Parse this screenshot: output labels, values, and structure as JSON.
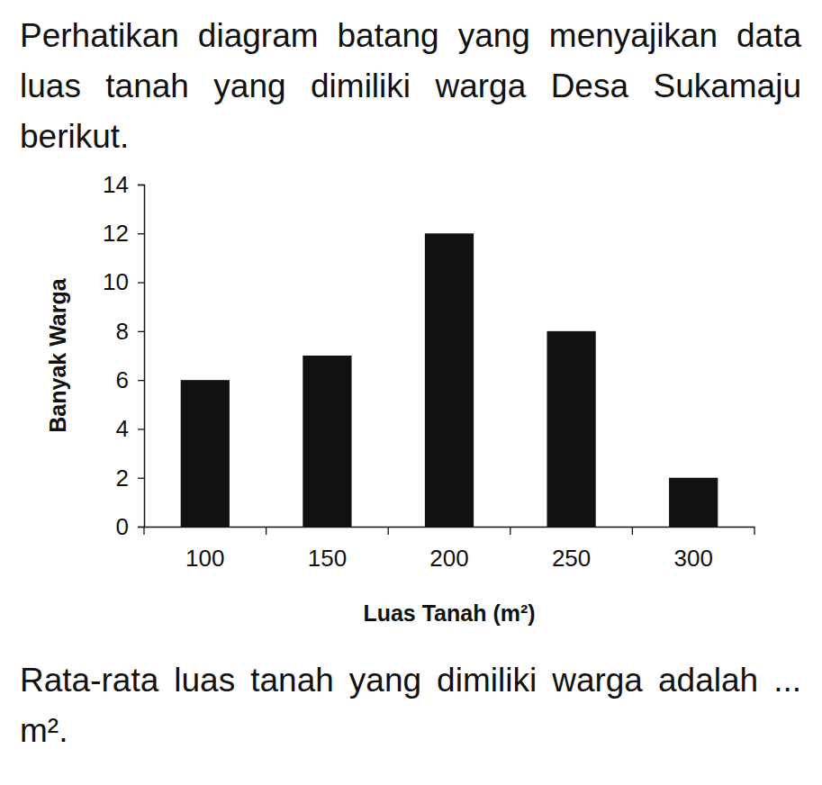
{
  "chart_data": {
    "type": "bar",
    "title": "Perhatikan diagram batang yang menyajikan data luas tanah yang dimiliki warga Desa Sukamaju berikut.",
    "annotations": [
      "Rata-rata luas tanah yang dimiliki warga adalah ... m²."
    ],
    "x_label": "Luas Tanah (m²)",
    "y_label": "Banyak Warga",
    "categories": [
      100,
      150,
      200,
      250,
      300
    ],
    "values": [
      6,
      7,
      12,
      8,
      2
    ],
    "color": "#111111",
    "ylim": [
      0,
      14
    ],
    "yticks": [
      0,
      2,
      4,
      6,
      8,
      10,
      12,
      14
    ],
    "grid": false
  }
}
